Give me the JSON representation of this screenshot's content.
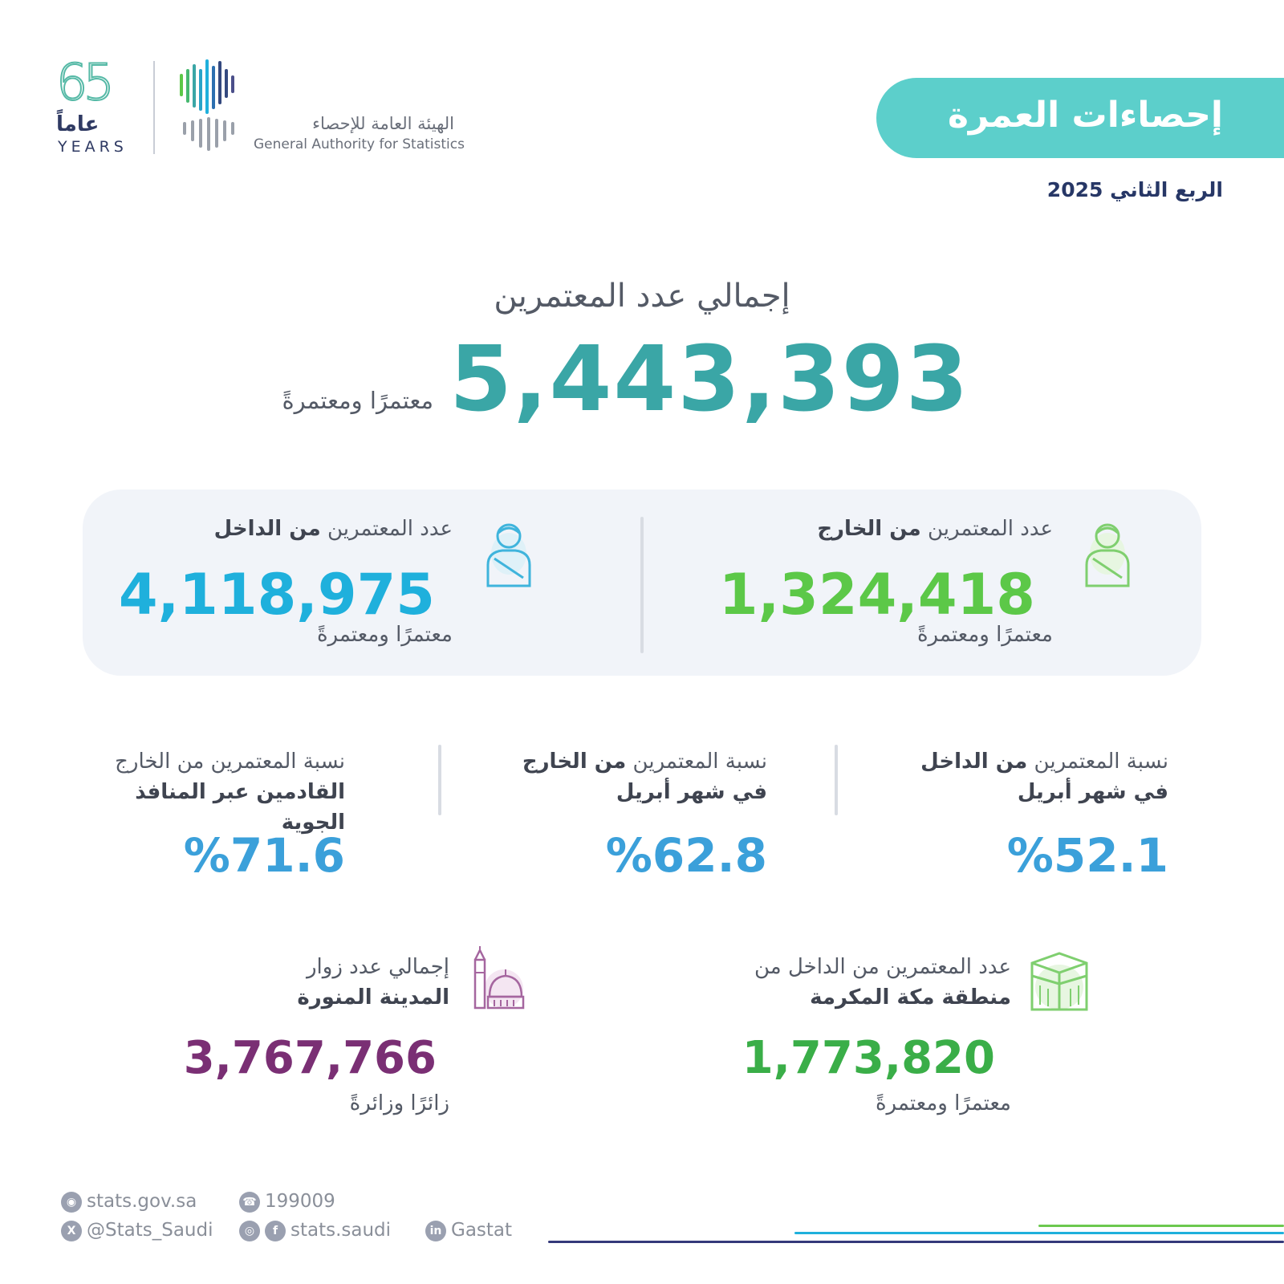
{
  "header": {
    "anniversary_number": "65",
    "anniversary_ar": "عاماً",
    "anniversary_en": "YEARS",
    "org_name_ar": "الهيئة العامة للإحصاء",
    "org_name_en": "General Authority for Statistics",
    "title": "إحصاءات العمرة",
    "subtitle": "الربع الثاني 2025"
  },
  "total": {
    "label": "إجمالي عدد المعتمرين",
    "value": "5,443,393",
    "unit": "معتمرًا ومعتمرةً"
  },
  "panel": {
    "external": {
      "label_prefix": "عدد المعتمرين",
      "label_bold": "من الخارج",
      "value": "1,324,418",
      "unit": "معتمرًا ومعتمرةً",
      "icon": "pilgrim-icon",
      "color": "#5cc848"
    },
    "internal": {
      "label_prefix": "عدد المعتمرين",
      "label_bold": "من الداخل",
      "value": "4,118,975",
      "unit": "معتمرًا ومعتمرةً",
      "icon": "pilgrim-icon",
      "color": "#1fb0dc"
    }
  },
  "percentages": [
    {
      "line1_prefix": "نسبة المعتمرين",
      "line1_bold": "من الداخل",
      "line2_bold": "في شهر أبريل",
      "value": "%52.1"
    },
    {
      "line1_prefix": "نسبة المعتمرين",
      "line1_bold": "من الخارج",
      "line2_bold": "في شهر أبريل",
      "value": "%62.8"
    },
    {
      "line1_prefix": "نسبة المعتمرين من الخارج",
      "line2_bold": "القادمين عبر المنافذ الجوية",
      "value": "%71.6"
    }
  ],
  "makkah": {
    "line1": "عدد المعتمرين من الداخل من",
    "line2": "منطقة مكة المكرمة",
    "value": "1,773,820",
    "unit": "معتمرًا ومعتمرةً",
    "icon": "kaaba-icon",
    "color": "#3aae48"
  },
  "madinah": {
    "line1": "إجمالي عدد زوار",
    "line2": "المدينة المنورة",
    "value": "3,767,766",
    "unit": "زائرًا وزائرةً",
    "icon": "mosque-icon",
    "color": "#7a2f74"
  },
  "footer": {
    "website": "stats.gov.sa",
    "phone": "199009",
    "twitter": "@Stats_Saudi",
    "social": "stats.saudi",
    "linkedin": "Gastat"
  }
}
